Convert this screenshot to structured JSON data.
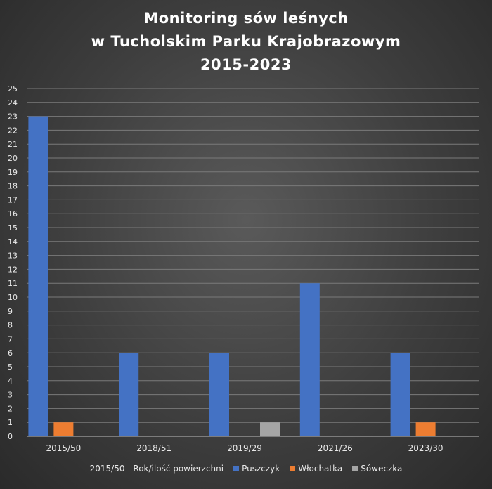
{
  "colors": {
    "puszczyk": "#4472C4",
    "wlochatka": "#ED7D31",
    "soweczka": "#A5A5A5",
    "grid": "#7a7a7a",
    "text": "#e8e8e8"
  },
  "chart_data": {
    "type": "bar",
    "title_lines": [
      "Monitoring  sów leśnych",
      "w Tucholskim  Parku  Krajobrazowym",
      "2015-2023"
    ],
    "categories": [
      "2015/50",
      "2018/51",
      "2019/29",
      "2021/26",
      "2023/30"
    ],
    "series": [
      {
        "name": "Puszczyk",
        "values": [
          23,
          6,
          6,
          11,
          6
        ]
      },
      {
        "name": "Włochatka",
        "values": [
          1,
          0,
          0,
          0,
          1
        ]
      },
      {
        "name": "Sóweczka",
        "values": [
          0,
          0,
          1,
          0,
          0
        ]
      }
    ],
    "ylim": [
      0,
      25
    ],
    "y_ticks": [
      0,
      1,
      2,
      3,
      4,
      5,
      6,
      7,
      8,
      9,
      10,
      11,
      12,
      13,
      14,
      15,
      16,
      17,
      18,
      19,
      20,
      21,
      22,
      23,
      24,
      25
    ],
    "grid": true,
    "legend_position": "bottom",
    "legend_note": "2015/50 - Rok/ilość powierzchni"
  }
}
